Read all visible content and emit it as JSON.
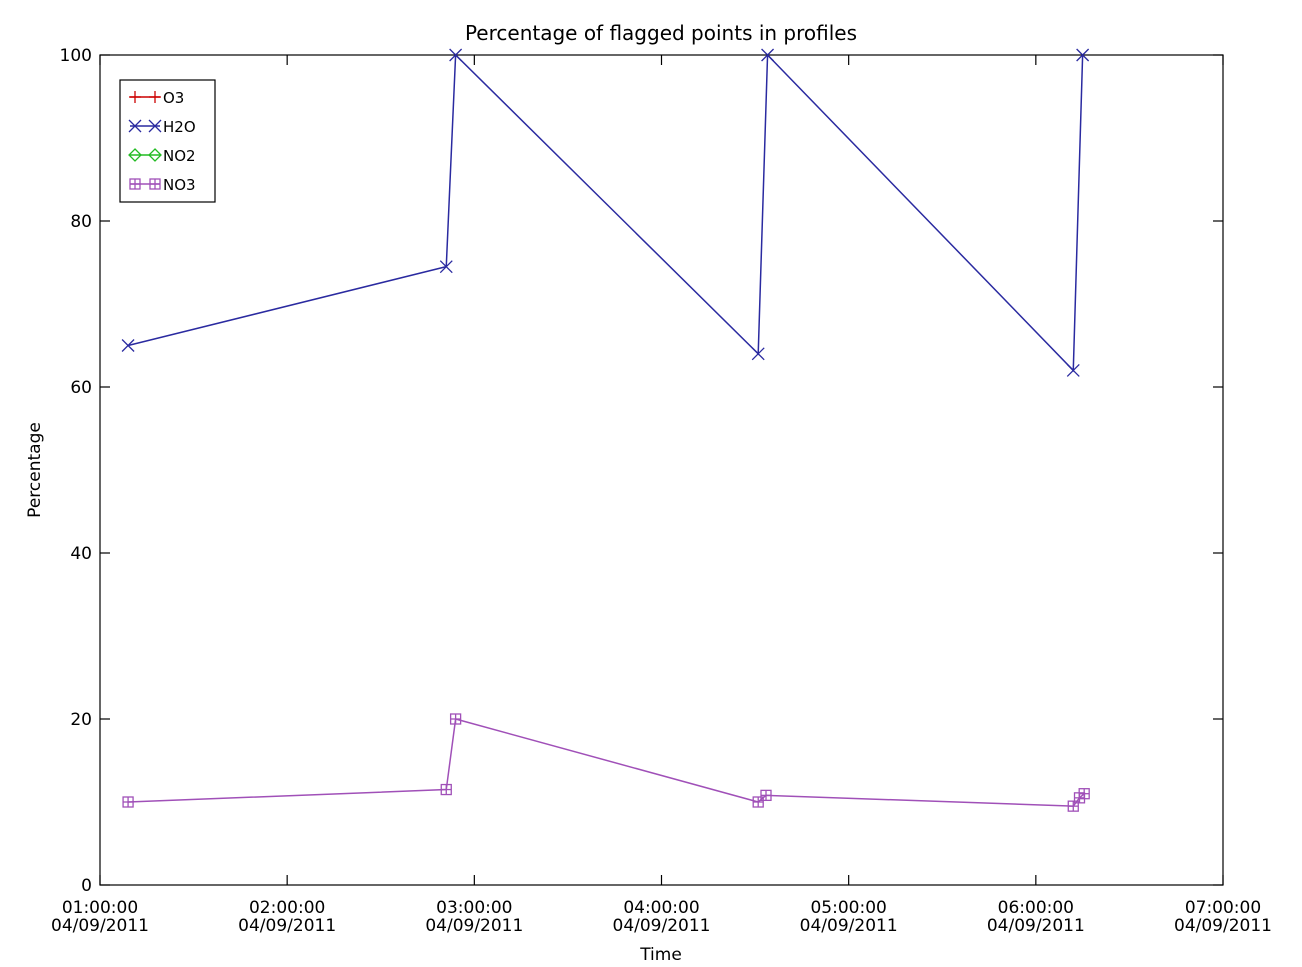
{
  "chart_data": {
    "type": "line",
    "title": "Percentage of flagged points in profiles",
    "xlabel": "Time",
    "ylabel": "Percentage",
    "xlim": [
      "04/09/2011 01:00:00",
      "04/09/2011 07:00:00"
    ],
    "ylim": [
      0,
      100
    ],
    "x_ticks": [
      {
        "time": "01:00:00",
        "date": "04/09/2011"
      },
      {
        "time": "02:00:00",
        "date": "04/09/2011"
      },
      {
        "time": "03:00:00",
        "date": "04/09/2011"
      },
      {
        "time": "04:00:00",
        "date": "04/09/2011"
      },
      {
        "time": "05:00:00",
        "date": "04/09/2011"
      },
      {
        "time": "06:00:00",
        "date": "04/09/2011"
      },
      {
        "time": "07:00:00",
        "date": "04/09/2011"
      }
    ],
    "y_ticks": [
      0,
      20,
      40,
      60,
      80,
      100
    ],
    "grid": false,
    "legend_position": "top-left",
    "series": [
      {
        "name": "O3",
        "color": "#cc0000",
        "marker": "plus",
        "x": [],
        "y": []
      },
      {
        "name": "H2O",
        "color": "#2a2aa0",
        "marker": "x",
        "x": [
          "04/09/2011 01:09:00",
          "04/09/2011 02:51:00",
          "04/09/2011 02:54:00",
          "04/09/2011 04:31:00",
          "04/09/2011 04:34:00",
          "04/09/2011 06:12:00",
          "04/09/2011 06:15:00"
        ],
        "y": [
          65,
          74.5,
          100,
          64,
          100,
          62,
          100
        ]
      },
      {
        "name": "NO2",
        "color": "#22bb22",
        "marker": "diamond",
        "x": [],
        "y": []
      },
      {
        "name": "NO3",
        "color": "#a050b8",
        "marker": "square",
        "x": [
          "04/09/2011 01:09:00",
          "04/09/2011 02:51:00",
          "04/09/2011 02:54:00",
          "04/09/2011 04:31:00",
          "04/09/2011 04:33:30",
          "04/09/2011 06:12:00",
          "04/09/2011 06:14:00",
          "04/09/2011 06:15:30"
        ],
        "y": [
          10,
          11.5,
          20,
          10,
          10.8,
          9.5,
          10.5,
          11
        ]
      }
    ]
  }
}
